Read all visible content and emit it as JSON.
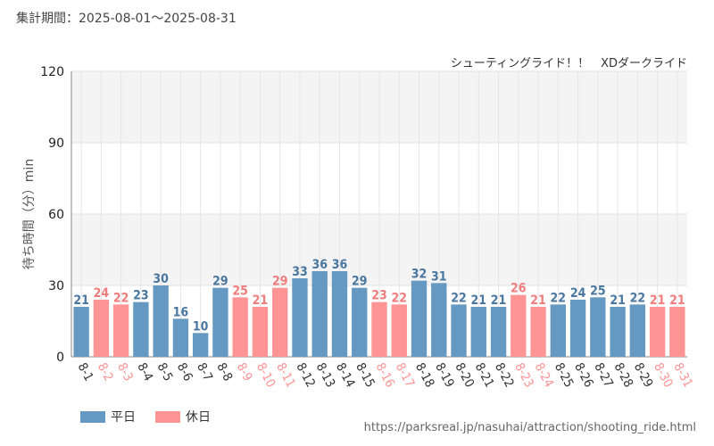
{
  "header": {
    "period": "集計期間：2025-08-01～2025-08-31",
    "subtitle": "シューティングライド！！　XDダークライド"
  },
  "legend": {
    "weekday": "平日",
    "holiday": "休日"
  },
  "source": "https://parksreal.jp/nasuhai/attraction/shooting_ride.html",
  "colors": {
    "weekday": "#6699c2",
    "holiday": "#ff9494",
    "weekday_text": "#4a77a0",
    "holiday_text": "#f07c7c"
  },
  "chart_data": {
    "type": "bar",
    "ylabel": "待ち時間（分）min",
    "ylim": [
      0,
      120
    ],
    "yticks": [
      0,
      30,
      60,
      90,
      120
    ],
    "grid": true,
    "legend_position": "bottom-left",
    "categories": [
      "8-1",
      "8-2",
      "8-3",
      "8-4",
      "8-5",
      "8-6",
      "8-7",
      "8-8",
      "8-9",
      "8-10",
      "8-11",
      "8-12",
      "8-13",
      "8-14",
      "8-15",
      "8-16",
      "8-17",
      "8-18",
      "8-19",
      "8-20",
      "8-21",
      "8-22",
      "8-23",
      "8-24",
      "8-25",
      "8-26",
      "8-27",
      "8-28",
      "8-29",
      "8-30",
      "8-31"
    ],
    "values": [
      21,
      24,
      22,
      23,
      30,
      16,
      10,
      29,
      25,
      21,
      29,
      33,
      36,
      36,
      29,
      23,
      22,
      32,
      31,
      22,
      21,
      21,
      26,
      21,
      22,
      24,
      25,
      21,
      22,
      21,
      21
    ],
    "day_types": [
      "weekday",
      "holiday",
      "holiday",
      "weekday",
      "weekday",
      "weekday",
      "weekday",
      "weekday",
      "holiday",
      "holiday",
      "holiday",
      "weekday",
      "weekday",
      "weekday",
      "weekday",
      "holiday",
      "holiday",
      "weekday",
      "weekday",
      "weekday",
      "weekday",
      "weekday",
      "holiday",
      "holiday",
      "weekday",
      "weekday",
      "weekday",
      "weekday",
      "weekday",
      "holiday",
      "holiday"
    ]
  }
}
